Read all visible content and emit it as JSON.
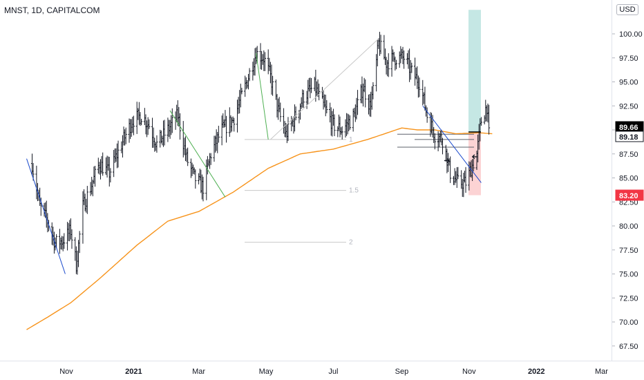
{
  "header": {
    "title": "MNST, 1D, CAPITALCOM",
    "currency_label": "USD"
  },
  "colors": {
    "bars": "#131722",
    "ma_line": "#f7931a",
    "trendline_blue": "#1848cc",
    "trendline_green": "#4caf50",
    "trendline_gray": "#c8c8c8",
    "fib_line": "#c8c8c8",
    "target_zone": "#b2dfdb",
    "stop_zone": "#fccbcd",
    "axis_text": "#131722"
  },
  "chart_data": {
    "type": "ohlc",
    "symbol": "MNST",
    "timeframe": "1D",
    "source": "CAPITALCOM",
    "y_axis": {
      "range": [
        65.5,
        102.5
      ],
      "ticks": [
        "100.00",
        "97.50",
        "95.00",
        "92.50",
        "90.00",
        "87.50",
        "85.00",
        "82.50",
        "80.00",
        "77.50",
        "75.00",
        "72.50",
        "70.00",
        "67.50"
      ]
    },
    "x_axis": {
      "ticks": [
        {
          "label": "Nov",
          "bold": false
        },
        {
          "label": "2021",
          "bold": true
        },
        {
          "label": "Mar",
          "bold": false
        },
        {
          "label": "May",
          "bold": false
        },
        {
          "label": "Jul",
          "bold": false
        },
        {
          "label": "Sep",
          "bold": false
        },
        {
          "label": "Nov",
          "bold": false
        },
        {
          "label": "2022",
          "bold": true
        },
        {
          "label": "Mar",
          "bold": false
        }
      ]
    },
    "price_anchors": [
      [
        "2020-10-01",
        86.5
      ],
      [
        "2020-10-08",
        82.0
      ],
      [
        "2020-10-15",
        80.5
      ],
      [
        "2020-10-22",
        78.2
      ],
      [
        "2020-10-29",
        78.5
      ],
      [
        "2020-11-05",
        79.5
      ],
      [
        "2020-11-10",
        76.0
      ],
      [
        "2020-11-16",
        82.0
      ],
      [
        "2020-11-23",
        84.0
      ],
      [
        "2020-12-01",
        86.5
      ],
      [
        "2020-12-10",
        85.5
      ],
      [
        "2020-12-21",
        88.5
      ],
      [
        "2020-12-31",
        91.0
      ],
      [
        "2021-01-08",
        91.5
      ],
      [
        "2021-01-15",
        90.5
      ],
      [
        "2021-01-22",
        88.5
      ],
      [
        "2021-02-01",
        90.0
      ],
      [
        "2021-02-10",
        91.5
      ],
      [
        "2021-02-18",
        87.0
      ],
      [
        "2021-02-25",
        85.0
      ],
      [
        "2021-03-05",
        84.0
      ],
      [
        "2021-03-12",
        87.5
      ],
      [
        "2021-03-22",
        90.0
      ],
      [
        "2021-04-01",
        91.0
      ],
      [
        "2021-04-12",
        94.5
      ],
      [
        "2021-04-22",
        98.0
      ],
      [
        "2021-04-29",
        97.5
      ],
      [
        "2021-05-05",
        95.5
      ],
      [
        "2021-05-12",
        92.0
      ],
      [
        "2021-05-19",
        89.5
      ],
      [
        "2021-05-26",
        91.0
      ],
      [
        "2021-06-04",
        93.5
      ],
      [
        "2021-06-14",
        94.5
      ],
      [
        "2021-06-22",
        92.5
      ],
      [
        "2021-07-01",
        90.5
      ],
      [
        "2021-07-09",
        90.0
      ],
      [
        "2021-07-20",
        91.5
      ],
      [
        "2021-07-28",
        94.5
      ],
      [
        "2021-08-03",
        92.5
      ],
      [
        "2021-08-06",
        94.0
      ],
      [
        "2021-08-11",
        99.0
      ],
      [
        "2021-08-18",
        97.0
      ],
      [
        "2021-08-26",
        97.5
      ],
      [
        "2021-09-03",
        97.5
      ],
      [
        "2021-09-10",
        96.0
      ],
      [
        "2021-09-17",
        95.0
      ],
      [
        "2021-09-24",
        91.5
      ],
      [
        "2021-10-01",
        89.5
      ],
      [
        "2021-10-08",
        89.0
      ],
      [
        "2021-10-15",
        85.5
      ],
      [
        "2021-10-22",
        84.5
      ],
      [
        "2021-10-29",
        84.5
      ],
      [
        "2021-11-03",
        86.0
      ],
      [
        "2021-11-08",
        87.5
      ],
      [
        "2021-11-12",
        91.0
      ],
      [
        "2021-11-17",
        92.5
      ],
      [
        "2021-11-19",
        89.5
      ]
    ],
    "moving_average": [
      [
        "2020-09-26",
        69.2
      ],
      [
        "2020-10-15",
        70.5
      ],
      [
        "2020-11-05",
        72.0
      ],
      [
        "2020-12-01",
        74.5
      ],
      [
        "2021-01-04",
        78.0
      ],
      [
        "2021-02-01",
        80.5
      ],
      [
        "2021-03-01",
        81.5
      ],
      [
        "2021-04-01",
        83.5
      ],
      [
        "2021-05-03",
        86.0
      ],
      [
        "2021-06-01",
        87.5
      ],
      [
        "2021-07-01",
        88.0
      ],
      [
        "2021-08-01",
        89.0
      ],
      [
        "2021-09-01",
        90.2
      ],
      [
        "2021-09-15",
        90.0
      ],
      [
        "2021-10-01",
        90.0
      ],
      [
        "2021-10-20",
        89.6
      ],
      [
        "2021-11-10",
        89.7
      ],
      [
        "2021-11-22",
        89.6
      ]
    ],
    "fib_levels": [
      {
        "label": "1",
        "price": 89.0
      },
      {
        "label": "1.5",
        "price": 83.7
      },
      {
        "label": "2",
        "price": 78.3
      }
    ],
    "price_tags": [
      {
        "label": "89.66",
        "price": 89.66,
        "bg": "#000000",
        "fg": "#ffffff"
      },
      {
        "label": "89.18",
        "price": 89.18,
        "bg": "#ffffff",
        "fg": "#131722"
      },
      {
        "label": "83.20",
        "price": 83.2,
        "bg": "#f23645",
        "fg": "#ffffff"
      }
    ],
    "position": {
      "entry": 89.66,
      "target": 102.5,
      "stop": 83.2
    },
    "horizontal_lines": [
      89.55,
      88.2,
      89.0
    ],
    "trendlines": [
      {
        "color": "trendline_blue",
        "from": [
          "2020-09-26",
          87.0
        ],
        "to": [
          "2020-10-31",
          75.0
        ]
      },
      {
        "color": "trendline_green",
        "from": [
          "2021-02-03",
          92.0
        ],
        "to": [
          "2021-03-25",
          83.0
        ]
      },
      {
        "color": "trendline_green",
        "from": [
          "2021-04-22",
          98.0
        ],
        "to": [
          "2021-05-03",
          89.0
        ]
      },
      {
        "color": "trendline_gray",
        "from": [
          "2021-05-05",
          89.0
        ],
        "to": [
          "2021-08-11",
          99.5
        ]
      },
      {
        "color": "trendline_blue",
        "from": [
          "2021-09-20",
          92.5
        ],
        "to": [
          "2021-11-12",
          84.5
        ]
      }
    ],
    "arrows": [
      {
        "direction": "right",
        "at": [
          "2021-10-12",
          86.8
        ]
      },
      {
        "direction": "left",
        "at": [
          "2021-11-06",
          87.2
        ]
      }
    ]
  }
}
